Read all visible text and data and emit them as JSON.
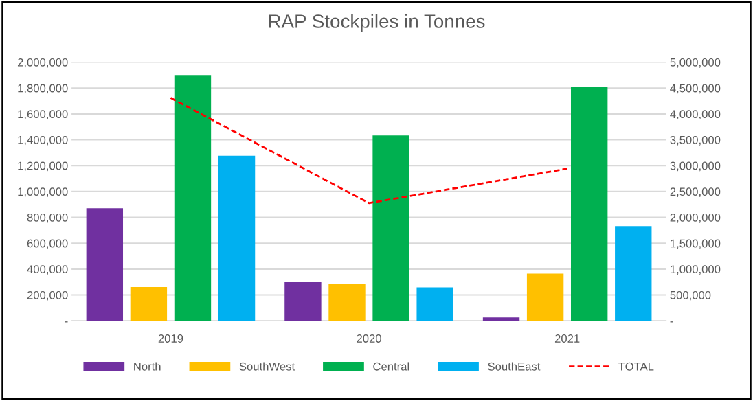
{
  "chart_data": {
    "type": "bar",
    "title": "RAP Stockpiles in Tonnes",
    "categories": [
      "2019",
      "2020",
      "2021"
    ],
    "series": [
      {
        "name": "North",
        "color": "#7030a0",
        "values": [
          870000,
          299000,
          26000
        ]
      },
      {
        "name": "SouthWest",
        "color": "#ffc000",
        "values": [
          261000,
          284000,
          365000
        ]
      },
      {
        "name": "Central",
        "color": "#00b050",
        "values": [
          1901000,
          1433000,
          1811000
        ]
      },
      {
        "name": "SouthEast",
        "color": "#00b0f0",
        "values": [
          1277000,
          259000,
          733000
        ]
      },
      {
        "name": "TOTAL",
        "color": "#ff0000",
        "type": "line",
        "axis": "y2",
        "line_style": "dashed",
        "values": [
          4310000,
          2275000,
          2940000
        ]
      }
    ],
    "ylim": [
      0,
      2000000
    ],
    "yticks": [
      {
        "value": 0,
        "label": "-"
      },
      {
        "value": 200000,
        "label": "200,000"
      },
      {
        "value": 400000,
        "label": "400,000"
      },
      {
        "value": 600000,
        "label": "600,000"
      },
      {
        "value": 800000,
        "label": "800,000"
      },
      {
        "value": 1000000,
        "label": "1,000,000"
      },
      {
        "value": 1200000,
        "label": "1,200,000"
      },
      {
        "value": 1400000,
        "label": "1,400,000"
      },
      {
        "value": 1600000,
        "label": "1,600,000"
      },
      {
        "value": 1800000,
        "label": "1,800,000"
      },
      {
        "value": 2000000,
        "label": "2,000,000"
      }
    ],
    "y2lim": [
      0,
      5000000
    ],
    "y2ticks": [
      {
        "value": 0,
        "label": "-"
      },
      {
        "value": 500000,
        "label": "500,000"
      },
      {
        "value": 1000000,
        "label": "1,000,000"
      },
      {
        "value": 1500000,
        "label": "1,500,000"
      },
      {
        "value": 2000000,
        "label": "2,000,000"
      },
      {
        "value": 2500000,
        "label": "2,500,000"
      },
      {
        "value": 3000000,
        "label": "3,000,000"
      },
      {
        "value": 3500000,
        "label": "3,500,000"
      },
      {
        "value": 4000000,
        "label": "4,000,000"
      },
      {
        "value": 4500000,
        "label": "4,500,000"
      },
      {
        "value": 5000000,
        "label": "5,000,000"
      }
    ],
    "grid": "y",
    "legend": "bottom"
  }
}
